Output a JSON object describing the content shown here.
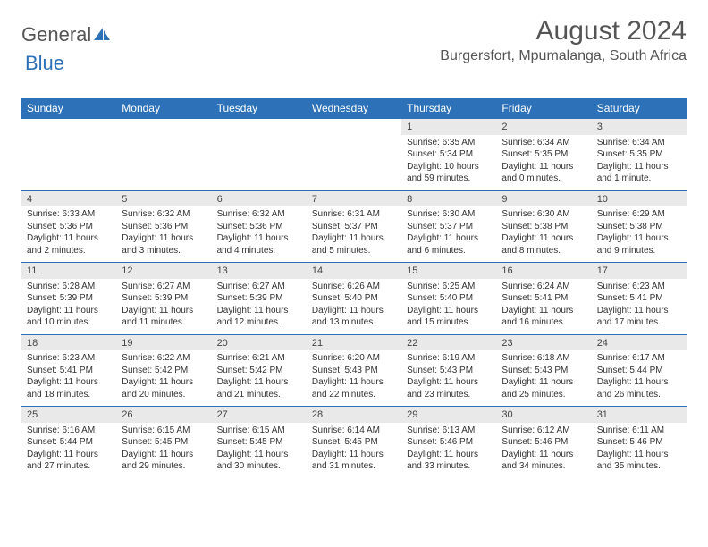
{
  "logo": {
    "text1": "General",
    "text2": "Blue"
  },
  "title": "August 2024",
  "location": "Burgersfort, Mpumalanga, South Africa",
  "colors": {
    "header_bg": "#2d72b8",
    "header_fg": "#ffffff",
    "daynum_bg": "#e9e9e9",
    "border": "#2d72b8"
  },
  "days_of_week": [
    "Sunday",
    "Monday",
    "Tuesday",
    "Wednesday",
    "Thursday",
    "Friday",
    "Saturday"
  ],
  "weeks": [
    [
      null,
      null,
      null,
      null,
      {
        "n": "1",
        "sr": "6:35 AM",
        "ss": "5:34 PM",
        "dl": "10 hours and 59 minutes."
      },
      {
        "n": "2",
        "sr": "6:34 AM",
        "ss": "5:35 PM",
        "dl": "11 hours and 0 minutes."
      },
      {
        "n": "3",
        "sr": "6:34 AM",
        "ss": "5:35 PM",
        "dl": "11 hours and 1 minute."
      }
    ],
    [
      {
        "n": "4",
        "sr": "6:33 AM",
        "ss": "5:36 PM",
        "dl": "11 hours and 2 minutes."
      },
      {
        "n": "5",
        "sr": "6:32 AM",
        "ss": "5:36 PM",
        "dl": "11 hours and 3 minutes."
      },
      {
        "n": "6",
        "sr": "6:32 AM",
        "ss": "5:36 PM",
        "dl": "11 hours and 4 minutes."
      },
      {
        "n": "7",
        "sr": "6:31 AM",
        "ss": "5:37 PM",
        "dl": "11 hours and 5 minutes."
      },
      {
        "n": "8",
        "sr": "6:30 AM",
        "ss": "5:37 PM",
        "dl": "11 hours and 6 minutes."
      },
      {
        "n": "9",
        "sr": "6:30 AM",
        "ss": "5:38 PM",
        "dl": "11 hours and 8 minutes."
      },
      {
        "n": "10",
        "sr": "6:29 AM",
        "ss": "5:38 PM",
        "dl": "11 hours and 9 minutes."
      }
    ],
    [
      {
        "n": "11",
        "sr": "6:28 AM",
        "ss": "5:39 PM",
        "dl": "11 hours and 10 minutes."
      },
      {
        "n": "12",
        "sr": "6:27 AM",
        "ss": "5:39 PM",
        "dl": "11 hours and 11 minutes."
      },
      {
        "n": "13",
        "sr": "6:27 AM",
        "ss": "5:39 PM",
        "dl": "11 hours and 12 minutes."
      },
      {
        "n": "14",
        "sr": "6:26 AM",
        "ss": "5:40 PM",
        "dl": "11 hours and 13 minutes."
      },
      {
        "n": "15",
        "sr": "6:25 AM",
        "ss": "5:40 PM",
        "dl": "11 hours and 15 minutes."
      },
      {
        "n": "16",
        "sr": "6:24 AM",
        "ss": "5:41 PM",
        "dl": "11 hours and 16 minutes."
      },
      {
        "n": "17",
        "sr": "6:23 AM",
        "ss": "5:41 PM",
        "dl": "11 hours and 17 minutes."
      }
    ],
    [
      {
        "n": "18",
        "sr": "6:23 AM",
        "ss": "5:41 PM",
        "dl": "11 hours and 18 minutes."
      },
      {
        "n": "19",
        "sr": "6:22 AM",
        "ss": "5:42 PM",
        "dl": "11 hours and 20 minutes."
      },
      {
        "n": "20",
        "sr": "6:21 AM",
        "ss": "5:42 PM",
        "dl": "11 hours and 21 minutes."
      },
      {
        "n": "21",
        "sr": "6:20 AM",
        "ss": "5:43 PM",
        "dl": "11 hours and 22 minutes."
      },
      {
        "n": "22",
        "sr": "6:19 AM",
        "ss": "5:43 PM",
        "dl": "11 hours and 23 minutes."
      },
      {
        "n": "23",
        "sr": "6:18 AM",
        "ss": "5:43 PM",
        "dl": "11 hours and 25 minutes."
      },
      {
        "n": "24",
        "sr": "6:17 AM",
        "ss": "5:44 PM",
        "dl": "11 hours and 26 minutes."
      }
    ],
    [
      {
        "n": "25",
        "sr": "6:16 AM",
        "ss": "5:44 PM",
        "dl": "11 hours and 27 minutes."
      },
      {
        "n": "26",
        "sr": "6:15 AM",
        "ss": "5:45 PM",
        "dl": "11 hours and 29 minutes."
      },
      {
        "n": "27",
        "sr": "6:15 AM",
        "ss": "5:45 PM",
        "dl": "11 hours and 30 minutes."
      },
      {
        "n": "28",
        "sr": "6:14 AM",
        "ss": "5:45 PM",
        "dl": "11 hours and 31 minutes."
      },
      {
        "n": "29",
        "sr": "6:13 AM",
        "ss": "5:46 PM",
        "dl": "11 hours and 33 minutes."
      },
      {
        "n": "30",
        "sr": "6:12 AM",
        "ss": "5:46 PM",
        "dl": "11 hours and 34 minutes."
      },
      {
        "n": "31",
        "sr": "6:11 AM",
        "ss": "5:46 PM",
        "dl": "11 hours and 35 minutes."
      }
    ]
  ],
  "labels": {
    "sunrise": "Sunrise:",
    "sunset": "Sunset:",
    "daylight": "Daylight:"
  }
}
